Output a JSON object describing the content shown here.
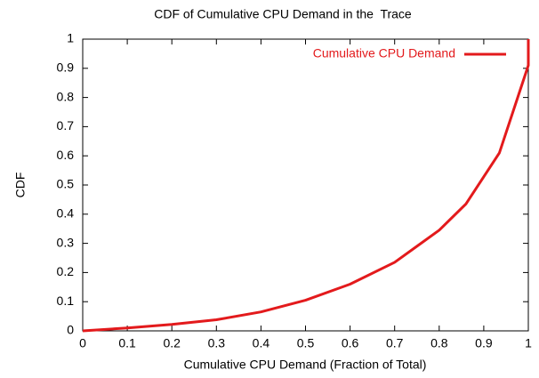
{
  "chart_data": {
    "type": "line",
    "title": "CDF of Cumulative CPU Demand in the  Trace",
    "xlabel": "Cumulative CPU Demand (Fraction of Total)",
    "ylabel": "CDF",
    "x": [
      0,
      0.1,
      0.2,
      0.3,
      0.4,
      0.5,
      0.6,
      0.7,
      0.75,
      0.8,
      0.86,
      0.935,
      1,
      1
    ],
    "series": [
      {
        "name": "Cumulative CPU Demand",
        "color": "#e31a1c",
        "values": [
          0,
          0.01,
          0.022,
          0.038,
          0.065,
          0.105,
          0.16,
          0.235,
          0.29,
          0.345,
          0.435,
          0.61,
          0.91,
          1
        ]
      }
    ],
    "xlim": [
      0,
      1
    ],
    "xticks": [
      0,
      0.1,
      0.2,
      0.3,
      0.4,
      0.5,
      0.6,
      0.7,
      0.8,
      0.9,
      1
    ],
    "ylim": [
      0,
      1
    ],
    "yticks": [
      0,
      0.1,
      0.2,
      0.3,
      0.4,
      0.5,
      0.6,
      0.7,
      0.8,
      0.9,
      1
    ],
    "legend": "top-right"
  }
}
